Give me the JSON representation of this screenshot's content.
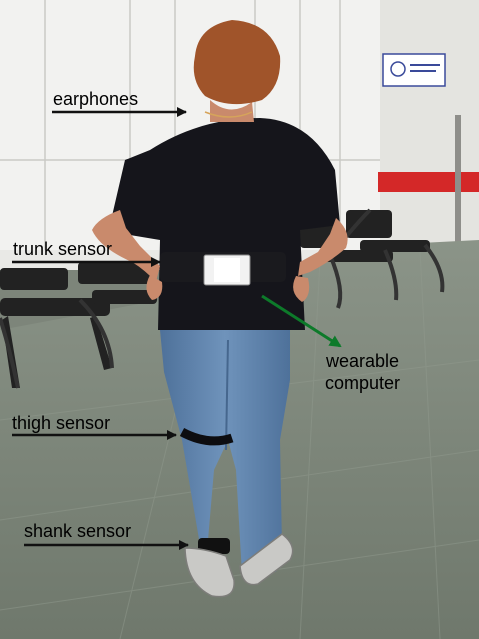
{
  "annotations": {
    "earphones": "earphones",
    "trunk_sensor": "trunk sensor",
    "wearable_computer_line1": "wearable",
    "wearable_computer_line2": "computer",
    "thigh_sensor": "thigh sensor",
    "shank_sensor": "shank sensor"
  },
  "colors": {
    "arrow_black": "#111111",
    "arrow_green": "#0d7a2a",
    "wall_stripe": "#d42828",
    "floor": "#7e887b",
    "cabinet": "#f0f0f0",
    "shirt": "#15151b",
    "jeans": "#5f83ad"
  }
}
